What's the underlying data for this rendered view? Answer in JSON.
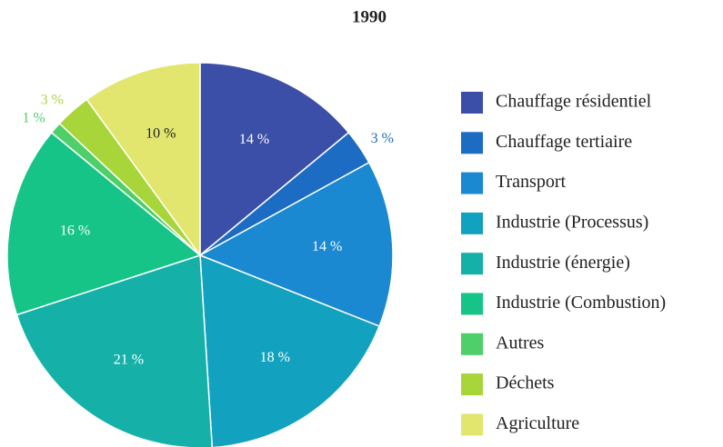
{
  "chart_data": {
    "type": "pie",
    "title": "1990",
    "categories": [
      "Chauffage résidentiel",
      "Chauffage tertiaire",
      "Transport",
      "Industrie (Processus)",
      "Industrie (énergie)",
      "Industrie (Combustion)",
      "Autres",
      "Déchets",
      "Agriculture"
    ],
    "values": [
      14,
      3,
      14,
      18,
      21,
      16,
      1,
      3,
      10
    ],
    "value_labels": [
      "14 %",
      "3 %",
      "14 %",
      "18 %",
      "21 %",
      "16 %",
      "1 %",
      "3 %",
      "10 %"
    ],
    "colors": [
      "#3b4ea8",
      "#1c6cc4",
      "#1a89d2",
      "#12a2c0",
      "#15b1a8",
      "#16c488",
      "#4ecf6a",
      "#a8d63a",
      "#e2e66e"
    ],
    "legend": "right"
  }
}
